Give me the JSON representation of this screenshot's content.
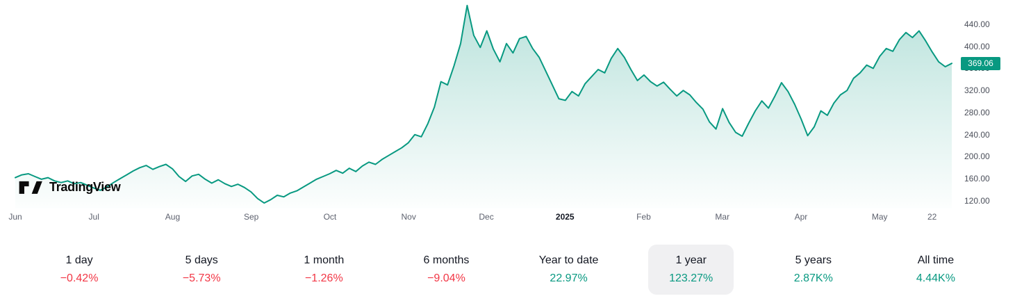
{
  "brand": {
    "logo_text": "TradingView"
  },
  "colors": {
    "up": "#089981",
    "down": "#f23645",
    "line": "#089981",
    "badge_bg": "#089981",
    "selected_bg": "#f0f0f2",
    "text": "#131722",
    "muted": "#5d616e"
  },
  "chart_data": {
    "type": "area",
    "title": "",
    "xlabel": "",
    "ylabel": "",
    "ylim": [
      106,
      484
    ],
    "grid": false,
    "legend": false,
    "last_value": 369.06,
    "last_price_label": "369.06",
    "y_ticks": [
      {
        "label": "440.00",
        "value": 440
      },
      {
        "label": "400.00",
        "value": 400
      },
      {
        "label": "360.00",
        "value": 360
      },
      {
        "label": "320.00",
        "value": 320
      },
      {
        "label": "280.00",
        "value": 280
      },
      {
        "label": "240.00",
        "value": 240
      },
      {
        "label": "200.00",
        "value": 200
      },
      {
        "label": "160.00",
        "value": 160
      },
      {
        "label": "120.00",
        "value": 120
      }
    ],
    "x_ticks": [
      {
        "label": "Jun",
        "pos": 0.0,
        "strong": false
      },
      {
        "label": "Jul",
        "pos": 0.084,
        "strong": false
      },
      {
        "label": "Aug",
        "pos": 0.168,
        "strong": false
      },
      {
        "label": "Sep",
        "pos": 0.252,
        "strong": false
      },
      {
        "label": "Oct",
        "pos": 0.336,
        "strong": false
      },
      {
        "label": "Nov",
        "pos": 0.42,
        "strong": false
      },
      {
        "label": "Dec",
        "pos": 0.503,
        "strong": false
      },
      {
        "label": "2025",
        "pos": 0.587,
        "strong": true
      },
      {
        "label": "Feb",
        "pos": 0.671,
        "strong": false
      },
      {
        "label": "Mar",
        "pos": 0.755,
        "strong": false
      },
      {
        "label": "Apr",
        "pos": 0.839,
        "strong": false
      },
      {
        "label": "May",
        "pos": 0.923,
        "strong": false
      },
      {
        "label": "22",
        "pos": 0.979,
        "strong": false
      }
    ],
    "prices": [
      162,
      167,
      169,
      164,
      159,
      162,
      156,
      153,
      156,
      151,
      153,
      148,
      143,
      139,
      145,
      153,
      160,
      167,
      174,
      180,
      184,
      177,
      182,
      186,
      178,
      164,
      155,
      165,
      168,
      159,
      152,
      158,
      151,
      146,
      150,
      144,
      136,
      124,
      116,
      122,
      130,
      127,
      134,
      138,
      145,
      152,
      159,
      164,
      169,
      175,
      170,
      179,
      173,
      183,
      190,
      186,
      195,
      202,
      209,
      216,
      225,
      240,
      236,
      260,
      290,
      336,
      330,
      365,
      405,
      474,
      420,
      398,
      428,
      395,
      372,
      405,
      388,
      414,
      418,
      396,
      380,
      355,
      330,
      305,
      302,
      318,
      310,
      332,
      345,
      358,
      352,
      378,
      396,
      380,
      358,
      338,
      348,
      336,
      328,
      335,
      322,
      310,
      320,
      312,
      298,
      286,
      263,
      250,
      287,
      262,
      244,
      237,
      261,
      283,
      301,
      288,
      310,
      334,
      318,
      295,
      268,
      238,
      254,
      283,
      275,
      297,
      312,
      320,
      342,
      352,
      366,
      360,
      382,
      396,
      391,
      412,
      425,
      416,
      428,
      410,
      390,
      372,
      363,
      369.06
    ]
  },
  "ranges": [
    {
      "label": "1 day",
      "change": "−0.42%",
      "direction": "down",
      "selected": false
    },
    {
      "label": "5 days",
      "change": "−5.73%",
      "direction": "down",
      "selected": false
    },
    {
      "label": "1 month",
      "change": "−1.26%",
      "direction": "down",
      "selected": false
    },
    {
      "label": "6 months",
      "change": "−9.04%",
      "direction": "down",
      "selected": false
    },
    {
      "label": "Year to date",
      "change": "22.97%",
      "direction": "up",
      "selected": false
    },
    {
      "label": "1 year",
      "change": "123.27%",
      "direction": "up",
      "selected": true
    },
    {
      "label": "5 years",
      "change": "2.87K%",
      "direction": "up",
      "selected": false
    },
    {
      "label": "All time",
      "change": "4.44K%",
      "direction": "up",
      "selected": false
    }
  ]
}
